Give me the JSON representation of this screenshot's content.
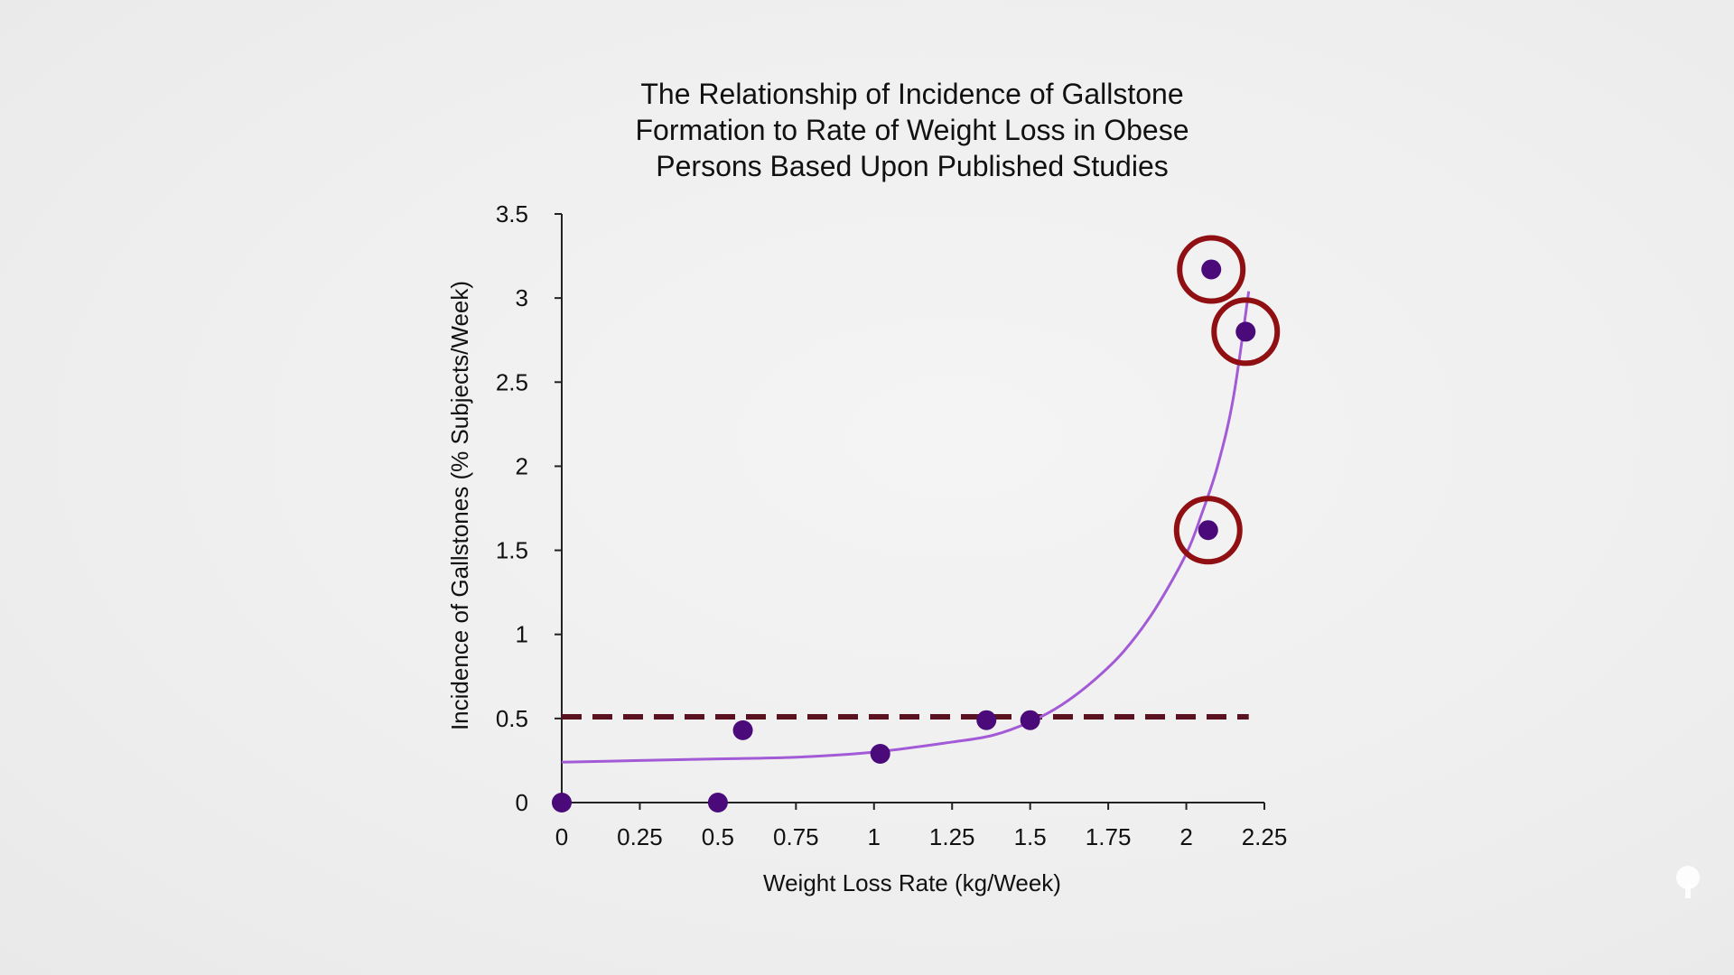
{
  "chart_data": {
    "type": "scatter",
    "title_lines": [
      "The Relationship of Incidence of Gallstone",
      "Formation to Rate of Weight Loss in Obese",
      "Persons Based Upon Published Studies"
    ],
    "xlabel": "Weight Loss Rate (kg/Week)",
    "ylabel": "Incidence of Gallstones (% Subjects/Week)",
    "xlim": [
      0,
      2.25
    ],
    "ylim": [
      0,
      3.5
    ],
    "x_ticks": [
      "0",
      "0.25",
      "0.5",
      "0.75",
      "1",
      "1.25",
      "1.5",
      "1.75",
      "2",
      "2.25"
    ],
    "y_ticks": [
      "0",
      "0.5",
      "1",
      "1.5",
      "2",
      "2.5",
      "3",
      "3.5"
    ],
    "grid": false,
    "points": [
      {
        "x": 0.0,
        "y": 0.0,
        "highlighted": false
      },
      {
        "x": 0.5,
        "y": 0.0,
        "highlighted": false
      },
      {
        "x": 0.58,
        "y": 0.43,
        "highlighted": false
      },
      {
        "x": 1.02,
        "y": 0.29,
        "highlighted": false
      },
      {
        "x": 1.36,
        "y": 0.49,
        "highlighted": false
      },
      {
        "x": 1.5,
        "y": 0.49,
        "highlighted": false
      },
      {
        "x": 2.07,
        "y": 1.62,
        "highlighted": true
      },
      {
        "x": 2.08,
        "y": 3.17,
        "highlighted": true
      },
      {
        "x": 2.19,
        "y": 2.8,
        "highlighted": true
      }
    ],
    "trend_curve": {
      "type": "exponential",
      "points": [
        [
          0.0,
          0.24
        ],
        [
          0.25,
          0.25
        ],
        [
          0.5,
          0.26
        ],
        [
          0.75,
          0.27
        ],
        [
          1.0,
          0.3
        ],
        [
          1.25,
          0.36
        ],
        [
          1.38,
          0.4
        ],
        [
          1.5,
          0.48
        ],
        [
          1.6,
          0.58
        ],
        [
          1.7,
          0.72
        ],
        [
          1.8,
          0.9
        ],
        [
          1.9,
          1.15
        ],
        [
          2.0,
          1.48
        ],
        [
          2.05,
          1.72
        ],
        [
          2.1,
          2.0
        ],
        [
          2.15,
          2.4
        ],
        [
          2.2,
          3.04
        ]
      ]
    },
    "reference_line": {
      "y": 0.51,
      "x_start": 0.0,
      "x_end": 2.2,
      "style": "dashed"
    },
    "colors": {
      "points": "#4a0a7a",
      "curve": "#a35ad6",
      "reference_line": "#5a1220",
      "highlight_circle": "#8f0f12",
      "axis": "#222222"
    }
  }
}
